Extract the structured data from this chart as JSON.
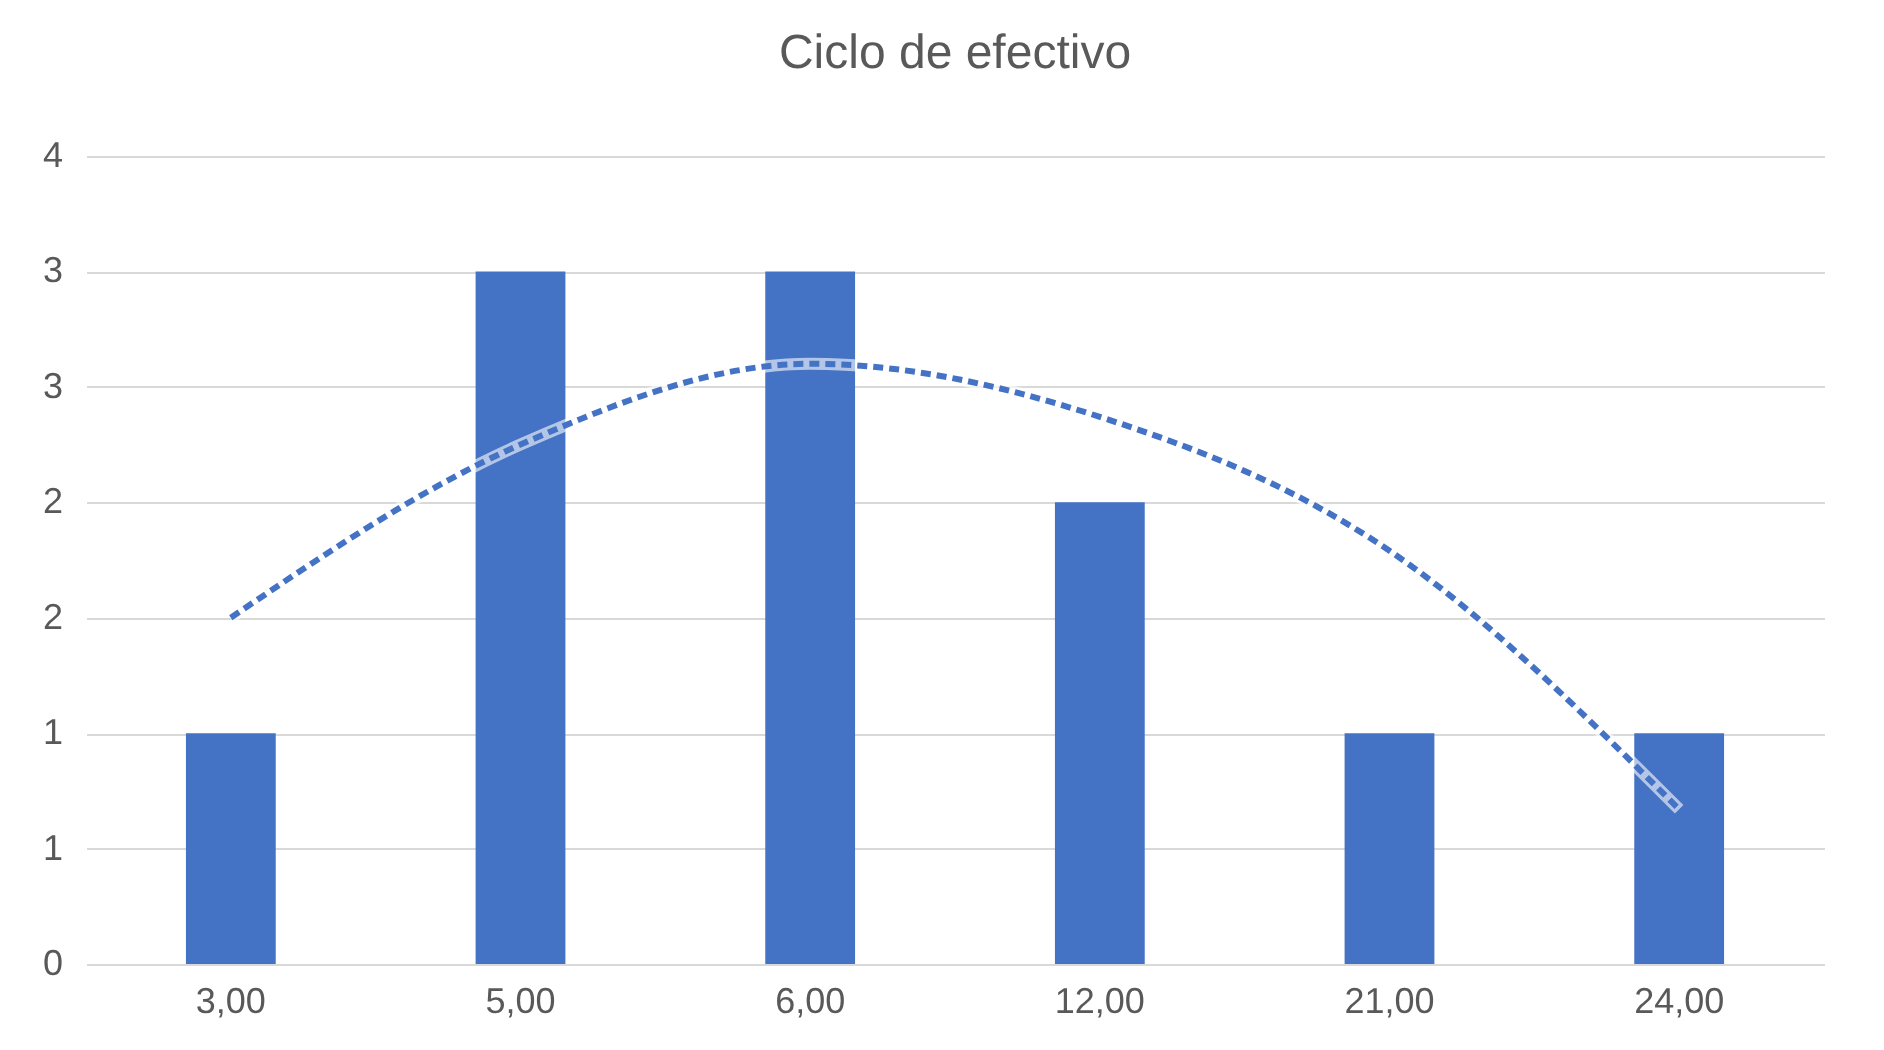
{
  "chart_data": {
    "type": "bar",
    "title": "Ciclo de efectivo",
    "categories": [
      "3,00",
      "5,00",
      "6,00",
      "12,00",
      "21,00",
      "24,00"
    ],
    "series": [
      {
        "color": "#4472c4",
        "values": [
          1,
          3,
          3,
          2,
          1,
          1
        ]
      },
      {
        "type": "line",
        "color": "#4472c4",
        "line_style": "dashed",
        "marker": "none",
        "values": [
          1.5,
          2.25,
          2.6,
          2.37,
          1.79,
          0.67
        ]
      }
    ],
    "ylim": [
      0,
      3.5
    ],
    "yticks": [
      0,
      {
        "value": 0.5,
        "label": "1"
      },
      1,
      {
        "value": 1.5,
        "label": "2"
      },
      2,
      {
        "value": 2.5,
        "label": "3"
      },
      3,
      {
        "value": 3.5,
        "label": "4"
      }
    ],
    "grid": "y"
  }
}
